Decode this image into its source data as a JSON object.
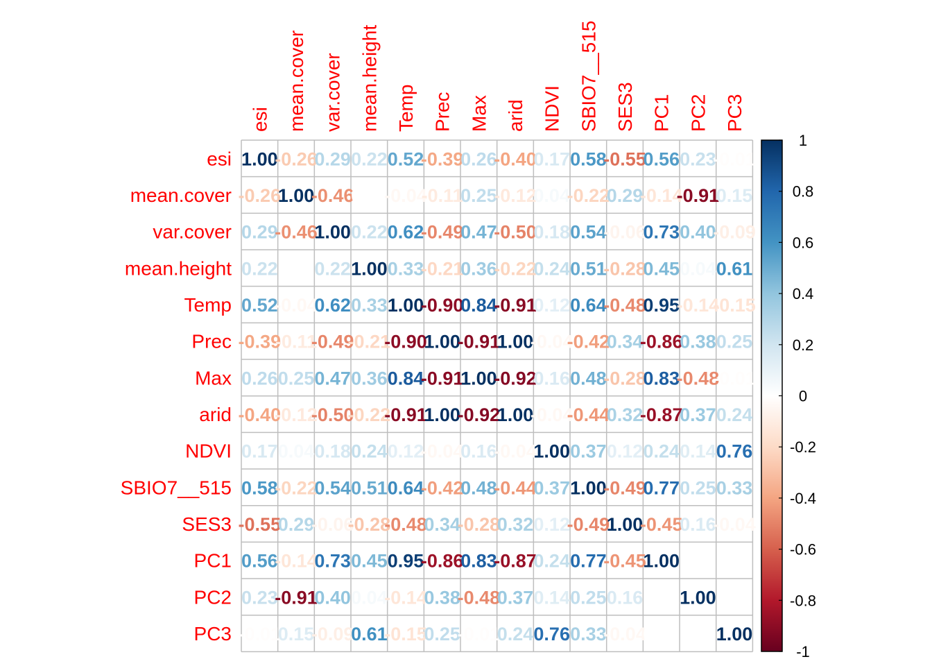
{
  "chart_data": {
    "type": "heatmap",
    "variables": [
      "esi",
      "mean.cover",
      "var.cover",
      "mean.height",
      "Temp",
      "Prec",
      "Max",
      "arid",
      "NDVI",
      "SBIO7__515",
      "SES3",
      "PC1",
      "PC2",
      "PC3"
    ],
    "matrix": [
      [
        1.0,
        -0.26,
        0.29,
        0.22,
        0.52,
        -0.39,
        0.26,
        -0.4,
        0.17,
        0.58,
        -0.55,
        0.56,
        0.23,
        -0.01
      ],
      [
        -0.26,
        1.0,
        -0.46,
        0.0,
        -0.04,
        -0.11,
        0.25,
        -0.12,
        0.04,
        -0.22,
        0.29,
        -0.14,
        -0.91,
        0.15
      ],
      [
        0.29,
        -0.46,
        1.0,
        0.22,
        0.62,
        -0.49,
        0.47,
        -0.5,
        0.18,
        0.54,
        -0.06,
        0.73,
        0.4,
        -0.09
      ],
      [
        0.22,
        0.0,
        0.22,
        1.0,
        0.33,
        -0.21,
        0.36,
        -0.22,
        0.24,
        0.51,
        -0.28,
        0.45,
        0.04,
        0.61
      ],
      [
        0.52,
        -0.04,
        0.62,
        0.33,
        1.0,
        -0.9,
        0.84,
        -0.91,
        0.12,
        0.64,
        -0.48,
        0.95,
        -0.14,
        -0.15
      ],
      [
        -0.39,
        -0.11,
        -0.49,
        -0.21,
        -0.9,
        1.0,
        -0.91,
        1.0,
        -0.04,
        -0.42,
        0.34,
        -0.86,
        0.38,
        0.25
      ],
      [
        0.26,
        0.25,
        0.47,
        0.36,
        0.84,
        -0.91,
        1.0,
        -0.92,
        0.16,
        0.48,
        -0.28,
        0.83,
        -0.48,
        -0.01
      ],
      [
        -0.4,
        -0.12,
        -0.5,
        -0.22,
        -0.91,
        1.0,
        -0.92,
        1.0,
        -0.04,
        -0.44,
        0.32,
        -0.87,
        0.37,
        0.24
      ],
      [
        0.17,
        0.04,
        0.18,
        0.24,
        0.12,
        -0.04,
        0.16,
        -0.04,
        1.0,
        0.37,
        0.12,
        0.24,
        0.14,
        0.76
      ],
      [
        0.58,
        -0.22,
        0.54,
        0.51,
        0.64,
        -0.42,
        0.48,
        -0.44,
        0.37,
        1.0,
        -0.49,
        0.77,
        0.25,
        0.33
      ],
      [
        -0.55,
        0.29,
        -0.06,
        -0.28,
        -0.48,
        0.34,
        -0.28,
        0.32,
        0.12,
        -0.49,
        1.0,
        -0.45,
        0.16,
        -0.04
      ],
      [
        0.56,
        -0.14,
        0.73,
        0.45,
        0.95,
        -0.86,
        0.83,
        -0.87,
        0.24,
        0.77,
        -0.45,
        1.0,
        0.0,
        0.0
      ],
      [
        0.23,
        -0.91,
        0.4,
        0.04,
        -0.14,
        0.38,
        -0.48,
        0.37,
        0.14,
        0.25,
        0.16,
        0.0,
        1.0,
        0.0
      ],
      [
        -0.01,
        0.15,
        -0.09,
        0.61,
        -0.15,
        0.25,
        -0.01,
        0.24,
        0.76,
        0.33,
        -0.04,
        0.0,
        0.0,
        1.0
      ]
    ],
    "colorbar": {
      "range": [
        -1,
        1
      ],
      "ticks": [
        "1",
        "0.8",
        "0.6",
        "0.4",
        "0.2",
        "0",
        "-0.2",
        "-0.4",
        "-0.6",
        "-0.8",
        "-1"
      ],
      "tick_values": [
        1,
        0.8,
        0.6,
        0.4,
        0.2,
        0,
        -0.2,
        -0.4,
        -0.6,
        -0.8,
        -1
      ],
      "palette": [
        "#67001F",
        "#B2182B",
        "#D6604D",
        "#F4A582",
        "#FDDBC7",
        "#FFFFFF",
        "#D1E5F0",
        "#92C5DE",
        "#4393C3",
        "#2166AC",
        "#053061"
      ]
    },
    "label_color": "#FF0000",
    "grid_color": "#BEBEBE",
    "grid": true,
    "legend": "right"
  }
}
